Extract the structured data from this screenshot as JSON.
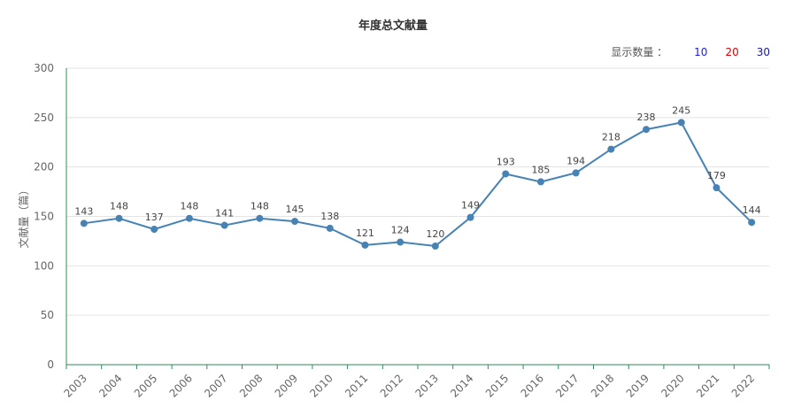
{
  "chart_data": {
    "type": "line",
    "title": "年度总文献量",
    "xlabel": "",
    "ylabel": "文献量（篇）",
    "ylim": [
      0,
      300
    ],
    "yticks": [
      0,
      50,
      100,
      150,
      200,
      250,
      300
    ],
    "grid": true,
    "x": [
      "2003",
      "2004",
      "2005",
      "2006",
      "2007",
      "2008",
      "2009",
      "2010",
      "2011",
      "2012",
      "2013",
      "2014",
      "2015",
      "2016",
      "2017",
      "2018",
      "2019",
      "2020",
      "2021",
      "2022"
    ],
    "series": [
      {
        "values": [
          143,
          148,
          137,
          148,
          141,
          148,
          145,
          138,
          121,
          124,
          120,
          149,
          193,
          185,
          194,
          218,
          238,
          245,
          179,
          144
        ]
      }
    ]
  },
  "controls": {
    "count_label": "显示数量 ：",
    "options": [
      "10",
      "20",
      "30"
    ]
  },
  "colors": {
    "line": "#4682b4",
    "axis": "#2e8b57",
    "grid": "#e3e3e3",
    "option_10": "#1a1aff",
    "option_20": "#e00000",
    "option_30": "#1a1a99"
  }
}
